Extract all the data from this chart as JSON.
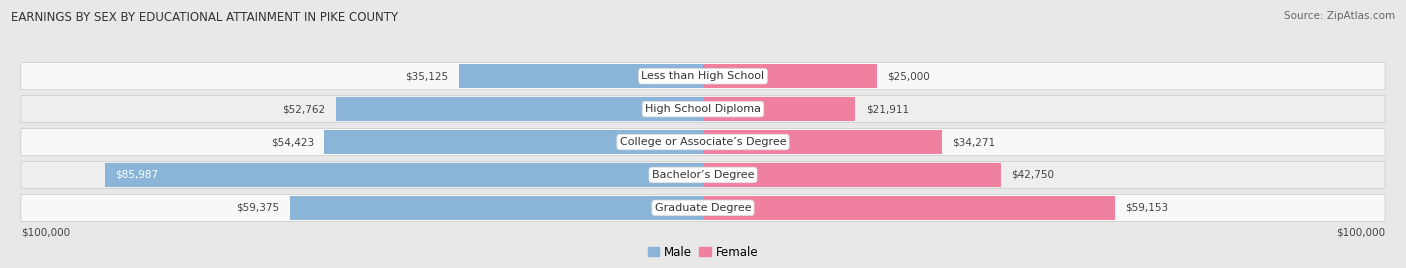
{
  "title": "EARNINGS BY SEX BY EDUCATIONAL ATTAINMENT IN PIKE COUNTY",
  "source": "Source: ZipAtlas.com",
  "categories": [
    "Less than High School",
    "High School Diploma",
    "College or Associate’s Degree",
    "Bachelor’s Degree",
    "Graduate Degree"
  ],
  "male_values": [
    35125,
    52762,
    54423,
    85987,
    59375
  ],
  "female_values": [
    25000,
    21911,
    34271,
    42750,
    59153
  ],
  "male_color": "#8ab4d8",
  "female_color": "#f080a0",
  "x_max": 100000,
  "x_label_left": "$100,000",
  "x_label_right": "$100,000",
  "bar_height": 0.72,
  "bg_color": "#e8e8e8",
  "row_color_light": "#f8f8f8",
  "row_color_dark": "#eeeeee",
  "label_fontsize": 8.5,
  "title_fontsize": 8.5,
  "value_fontsize": 7.5,
  "category_fontsize": 8.0,
  "source_fontsize": 7.5
}
